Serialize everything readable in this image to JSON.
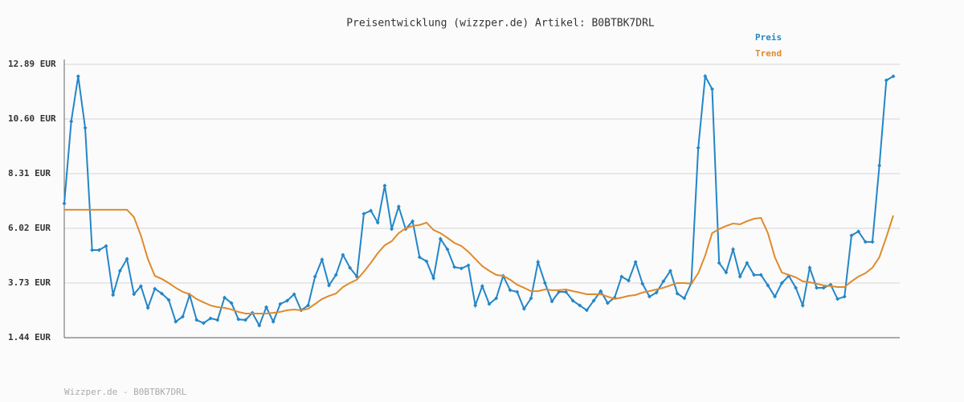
{
  "chart_data": {
    "type": "line",
    "title": "Preisentwicklung (wizzper.de) Artikel: B0BTBK7DRL",
    "series": [
      {
        "name": "Preis",
        "color": "#2386c8",
        "markers": true,
        "values": [
          7.06,
          10.5,
          12.39,
          10.23,
          5.11,
          5.11,
          5.28,
          3.23,
          4.24,
          4.74,
          3.26,
          3.6,
          2.69,
          3.49,
          3.29,
          3.02,
          2.11,
          2.32,
          3.23,
          2.18,
          2.05,
          2.25,
          2.18,
          3.12,
          2.89,
          2.21,
          2.18,
          2.48,
          1.95,
          2.72,
          2.11,
          2.85,
          2.99,
          3.26,
          2.59,
          2.79,
          4.0,
          4.71,
          3.63,
          4.07,
          4.91,
          4.37,
          4.0,
          6.63,
          6.76,
          6.26,
          7.81,
          5.99,
          6.93,
          5.99,
          6.32,
          4.81,
          4.64,
          3.93,
          5.58,
          5.14,
          4.4,
          4.34,
          4.47,
          2.79,
          3.6,
          2.85,
          3.09,
          4.03,
          3.43,
          3.36,
          2.65,
          3.09,
          4.61,
          3.73,
          2.96,
          3.36,
          3.36,
          2.99,
          2.79,
          2.59,
          2.99,
          3.39,
          2.89,
          3.12,
          4.0,
          3.83,
          4.61,
          3.7,
          3.16,
          3.33,
          3.8,
          4.24,
          3.29,
          3.09,
          3.73,
          9.39,
          12.39,
          11.85,
          4.57,
          4.17,
          5.14,
          4.0,
          4.57,
          4.07,
          4.07,
          3.63,
          3.16,
          3.73,
          4.03,
          3.53,
          2.79,
          4.37,
          3.53,
          3.53,
          3.66,
          3.06,
          3.16,
          5.72,
          5.89,
          5.45,
          5.45,
          8.65,
          12.22,
          12.39
        ]
      },
      {
        "name": "Trend",
        "color": "#e08a2c",
        "markers": false,
        "values": [
          6.8,
          6.8,
          6.8,
          6.8,
          6.8,
          6.8,
          6.8,
          6.8,
          6.8,
          6.8,
          6.49,
          5.72,
          4.74,
          4.03,
          3.9,
          3.73,
          3.53,
          3.36,
          3.26,
          3.06,
          2.92,
          2.79,
          2.72,
          2.69,
          2.62,
          2.52,
          2.45,
          2.45,
          2.45,
          2.45,
          2.48,
          2.52,
          2.59,
          2.62,
          2.59,
          2.65,
          2.85,
          3.06,
          3.19,
          3.29,
          3.56,
          3.73,
          3.87,
          4.2,
          4.57,
          4.98,
          5.31,
          5.48,
          5.82,
          6.02,
          6.12,
          6.16,
          6.26,
          5.95,
          5.82,
          5.62,
          5.41,
          5.28,
          5.04,
          4.74,
          4.44,
          4.24,
          4.07,
          4.03,
          3.87,
          3.66,
          3.53,
          3.39,
          3.39,
          3.46,
          3.43,
          3.43,
          3.46,
          3.39,
          3.33,
          3.26,
          3.26,
          3.26,
          3.16,
          3.06,
          3.12,
          3.19,
          3.23,
          3.33,
          3.39,
          3.46,
          3.53,
          3.63,
          3.73,
          3.73,
          3.7,
          4.14,
          4.88,
          5.82,
          5.99,
          6.12,
          6.22,
          6.19,
          6.32,
          6.42,
          6.46,
          5.82,
          4.81,
          4.17,
          4.07,
          3.97,
          3.8,
          3.76,
          3.7,
          3.63,
          3.6,
          3.56,
          3.56,
          3.8,
          4.0,
          4.14,
          4.37,
          4.81,
          5.65,
          6.56
        ]
      }
    ],
    "ylim": [
      1.44,
      12.89
    ],
    "yticks": [
      {
        "value": 1.44,
        "label": "1.44 EUR"
      },
      {
        "value": 3.73,
        "label": "3.73 EUR"
      },
      {
        "value": 6.02,
        "label": "6.02 EUR"
      },
      {
        "value": 8.31,
        "label": "8.31 EUR"
      },
      {
        "value": 10.6,
        "label": "10.60 EUR"
      },
      {
        "value": 12.89,
        "label": "12.89 EUR"
      }
    ],
    "grid": true,
    "legend": "top-right"
  },
  "footer": "Wizzper.de - B0BTBK7DRL"
}
